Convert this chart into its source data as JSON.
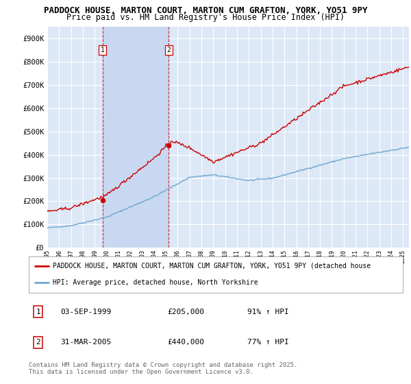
{
  "title_line1": "PADDOCK HOUSE, MARTON COURT, MARTON CUM GRAFTON, YORK, YO51 9PY",
  "title_line2": "Price paid vs. HM Land Registry's House Price Index (HPI)",
  "ylabel_ticks": [
    "£0",
    "£100K",
    "£200K",
    "£300K",
    "£400K",
    "£500K",
    "£600K",
    "£700K",
    "£800K",
    "£900K"
  ],
  "ytick_values": [
    0,
    100000,
    200000,
    300000,
    400000,
    500000,
    600000,
    700000,
    800000,
    900000
  ],
  "ylim": [
    0,
    950000
  ],
  "xlim_start": 1995.0,
  "xlim_end": 2025.5,
  "plot_bg_color": "#dce8f5",
  "grid_color": "#ffffff",
  "red_line_color": "#cc0000",
  "blue_line_color": "#6ea8d0",
  "span_color": "#c8d8f0",
  "marker1_x": 1999.67,
  "marker1_y": 205000,
  "marker2_x": 2005.25,
  "marker2_y": 440000,
  "vline1_x": 1999.67,
  "vline2_x": 2005.25,
  "legend_label_red": "PADDOCK HOUSE, MARTON COURT, MARTON CUM GRAFTON, YORK, YO51 9PY (detached house",
  "legend_label_blue": "HPI: Average price, detached house, North Yorkshire",
  "table_row1": [
    "1",
    "03-SEP-1999",
    "£205,000",
    "91% ↑ HPI"
  ],
  "table_row2": [
    "2",
    "31-MAR-2005",
    "£440,000",
    "77% ↑ HPI"
  ],
  "footer": "Contains HM Land Registry data © Crown copyright and database right 2025.\nThis data is licensed under the Open Government Licence v3.0.",
  "title_fontsize": 9,
  "subtitle_fontsize": 8.5,
  "tick_fontsize": 7.5,
  "label_fontsize": 8,
  "legend_fontsize": 7,
  "footer_fontsize": 6.5
}
